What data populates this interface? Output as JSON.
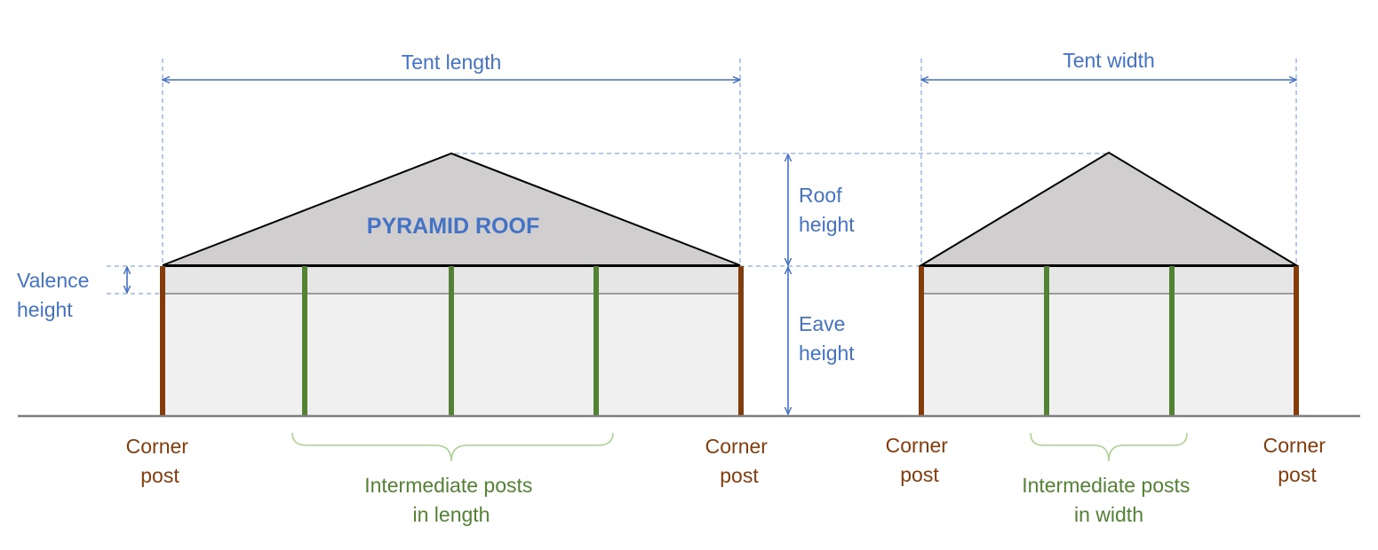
{
  "colors": {
    "dimension": "#4472C4",
    "corner_post": "#843C0C",
    "intermediate_post": "#548235",
    "roof": "#D0CECE",
    "wall": "#F0F0F0",
    "valence": "#E7E6E6",
    "ground": "#7F7F7F"
  },
  "labels": {
    "tent_length": "Tent length",
    "tent_width": "Tent width",
    "roof_title": "PYRAMID ROOF",
    "roof_height": [
      "Roof",
      "height"
    ],
    "eave_height": [
      "Eave",
      "height"
    ],
    "valence_height": [
      "Valence",
      "height"
    ],
    "corner_post": [
      "Corner",
      "post"
    ],
    "intermediate_length": [
      "Intermediate posts",
      "in length"
    ],
    "intermediate_width": [
      "Intermediate posts",
      "in width"
    ]
  }
}
